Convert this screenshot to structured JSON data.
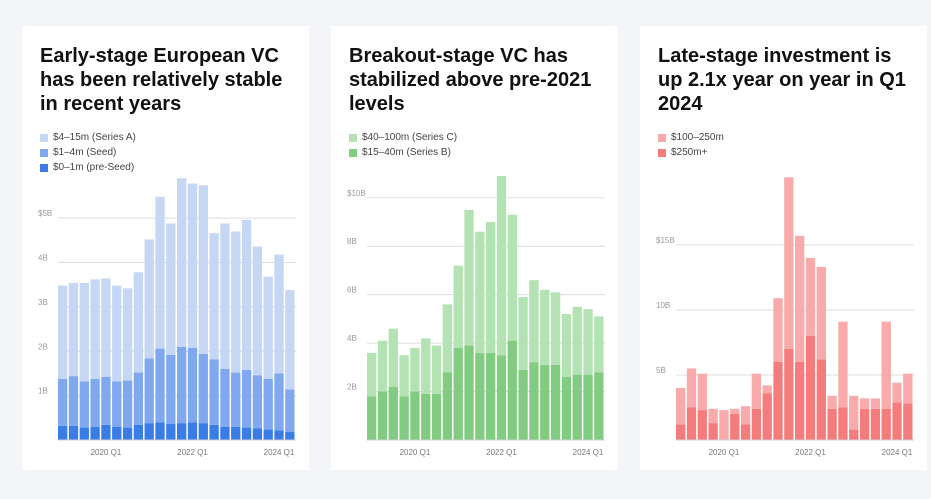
{
  "chart_data": [
    {
      "type": "bar",
      "stacked": true,
      "title": "Early-stage European VC has been relatively stable in recent years",
      "x_tick_labels": [
        {
          "index": 4,
          "label": "2020 Q1"
        },
        {
          "index": 12,
          "label": "2022 Q1"
        },
        {
          "index": 20,
          "label": "2024 Q1"
        }
      ],
      "y_ticks": [
        {
          "value": 1,
          "label": "1B"
        },
        {
          "value": 2,
          "label": "2B"
        },
        {
          "value": 3,
          "label": "3B"
        },
        {
          "value": 4,
          "label": "4B"
        },
        {
          "value": 5,
          "label": "$5B"
        }
      ],
      "ylim": [
        0,
        5.95
      ],
      "grid": true,
      "legend_position": "top-left",
      "series": [
        {
          "name": "$0–1m (pre-Seed)",
          "color": "#3b7de6",
          "values": [
            0.32,
            0.32,
            0.28,
            0.3,
            0.34,
            0.3,
            0.28,
            0.34,
            0.38,
            0.4,
            0.36,
            0.38,
            0.4,
            0.38,
            0.34,
            0.3,
            0.3,
            0.28,
            0.26,
            0.24,
            0.22,
            0.18
          ]
        },
        {
          "name": "$1–4m (Seed)",
          "color": "#7fa8ee",
          "values": [
            1.06,
            1.12,
            1.04,
            1.08,
            1.08,
            1.02,
            1.06,
            1.18,
            1.46,
            1.66,
            1.56,
            1.72,
            1.68,
            1.56,
            1.48,
            1.3,
            1.22,
            1.3,
            1.2,
            1.14,
            1.28,
            0.96
          ]
        },
        {
          "name": "$4–15m (Series A)",
          "color": "#c6d7f5",
          "values": [
            2.1,
            2.1,
            2.22,
            2.24,
            2.22,
            2.16,
            2.08,
            2.26,
            2.68,
            3.42,
            2.96,
            3.8,
            3.7,
            3.8,
            2.84,
            3.28,
            3.18,
            3.38,
            2.9,
            2.3,
            2.68,
            2.24
          ]
        }
      ]
    },
    {
      "type": "bar",
      "stacked": true,
      "title": "Breakout-stage VC has stabilized above pre-2021 levels",
      "x_tick_labels": [
        {
          "index": 4,
          "label": "2020 Q1"
        },
        {
          "index": 12,
          "label": "2022 Q1"
        },
        {
          "index": 20,
          "label": "2024 Q1"
        }
      ],
      "y_ticks": [
        {
          "value": 2,
          "label": "2B"
        },
        {
          "value": 4,
          "label": "4B"
        },
        {
          "value": 6,
          "label": "6B"
        },
        {
          "value": 8,
          "label": "8B"
        },
        {
          "value": 10,
          "label": "$10B"
        }
      ],
      "ylim": [
        0,
        10.9
      ],
      "grid": true,
      "legend_position": "top-left",
      "series": [
        {
          "name": "$15–40m (Series B)",
          "color": "#82cc82",
          "values": [
            1.8,
            2.0,
            2.2,
            1.8,
            2.0,
            1.9,
            1.9,
            2.8,
            3.8,
            3.9,
            3.6,
            3.6,
            3.5,
            4.1,
            2.9,
            3.2,
            3.1,
            3.1,
            2.6,
            2.7,
            2.7,
            2.8
          ]
        },
        {
          "name": "$40–100m (Series C)",
          "color": "#b3e3b3",
          "values": [
            1.8,
            2.1,
            2.4,
            1.7,
            1.8,
            2.3,
            2.0,
            2.8,
            3.4,
            5.6,
            5.0,
            5.4,
            7.4,
            5.2,
            3.0,
            3.4,
            3.1,
            3.0,
            2.6,
            2.8,
            2.7,
            2.3
          ]
        }
      ]
    },
    {
      "type": "bar",
      "stacked": true,
      "title": "Late-stage investment is up 2.1x year on year in Q1 2024",
      "x_tick_labels": [
        {
          "index": 4,
          "label": "2020 Q1"
        },
        {
          "index": 12,
          "label": "2022 Q1"
        },
        {
          "index": 20,
          "label": "2024 Q1"
        }
      ],
      "y_ticks": [
        {
          "value": 5,
          "label": "5B"
        },
        {
          "value": 10,
          "label": "10B"
        },
        {
          "value": 15,
          "label": "$15B"
        }
      ],
      "ylim": [
        0,
        20.3
      ],
      "grid": true,
      "legend_position": "top-left",
      "series": [
        {
          "name": "$250m+",
          "color": "#f47c7c",
          "values": [
            1.2,
            2.5,
            2.3,
            1.3,
            0,
            2.0,
            1.2,
            2.4,
            3.6,
            6.0,
            7.0,
            6.0,
            8.0,
            6.2,
            2.4,
            2.5,
            0.8,
            2.4,
            2.4,
            2.4,
            2.9,
            2.8
          ]
        },
        {
          "name": "$100–250m",
          "color": "#f9aaaa",
          "values": [
            2.8,
            3.0,
            2.8,
            1.1,
            2.3,
            0.4,
            1.4,
            2.7,
            0.6,
            4.9,
            13.2,
            9.7,
            6.0,
            7.1,
            1.0,
            6.6,
            2.6,
            0.8,
            0.8,
            6.7,
            1.5,
            2.3
          ]
        }
      ]
    }
  ]
}
